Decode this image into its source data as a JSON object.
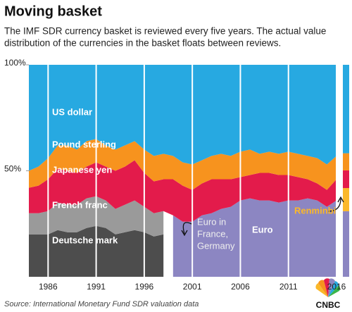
{
  "chart_data": {
    "type": "stacked-area",
    "title": "Moving basket",
    "subtitle": [
      "The IMF SDR currency basket is reviewed every five years. The actual value",
      "distribution of the currencies in the basket floats between reviews."
    ],
    "x": [
      1984,
      1985,
      1986,
      1987,
      1988,
      1989,
      1990,
      1991,
      1992,
      1993,
      1994,
      1995,
      1996,
      1997,
      1998,
      1999,
      2000,
      2001,
      2002,
      2003,
      2004,
      2005,
      2006,
      2007,
      2008,
      2009,
      2010,
      2011,
      2012,
      2013,
      2014,
      2015,
      2016
    ],
    "xlim": [
      1984,
      2016
    ],
    "xticks": [
      1986,
      1991,
      1996,
      2001,
      2006,
      2011,
      2016
    ],
    "ylim": [
      0,
      100
    ],
    "yticks": [
      {
        "value": 100,
        "label": "100%"
      },
      {
        "value": 50,
        "label": "50%"
      }
    ],
    "series": [
      {
        "name": "Deutsche mark",
        "color": "#4d4d4d",
        "values": [
          20,
          20,
          20,
          22,
          21,
          21,
          23,
          24,
          23,
          20,
          21,
          22,
          21,
          19,
          20,
          null,
          null,
          null,
          null,
          null,
          null,
          null,
          null,
          null,
          null,
          null,
          null,
          null,
          null,
          null,
          null,
          null,
          null
        ]
      },
      {
        "name": "French franc",
        "color": "#9a9a9a",
        "values": [
          10,
          10,
          11,
          13,
          13,
          13,
          14,
          14,
          13,
          12,
          13,
          14,
          12,
          11,
          11,
          null,
          null,
          null,
          null,
          null,
          null,
          null,
          null,
          null,
          null,
          null,
          null,
          null,
          null,
          null,
          null,
          null,
          null
        ]
      },
      {
        "name": "Euro",
        "color": "#8c86c2",
        "basket": 30.93,
        "values": [
          null,
          null,
          null,
          null,
          null,
          null,
          null,
          null,
          null,
          null,
          null,
          null,
          null,
          null,
          null,
          29,
          26,
          26,
          29,
          30,
          32,
          33,
          36,
          37,
          36,
          36,
          35,
          36,
          36,
          37,
          36,
          33,
          36
        ]
      },
      {
        "name": "Renminbi",
        "color": "#fbb829",
        "basket": 10.92,
        "values": [
          null,
          null,
          null,
          null,
          null,
          null,
          null,
          null,
          null,
          null,
          null,
          null,
          null,
          null,
          null,
          null,
          null,
          null,
          null,
          null,
          null,
          null,
          null,
          null,
          null,
          null,
          null,
          null,
          null,
          null,
          null,
          null,
          null
        ]
      },
      {
        "name": "Japanese yen",
        "color": "#e31b4b",
        "basket": 8.33,
        "values": [
          12,
          13,
          15,
          16,
          16,
          15,
          15,
          16,
          16,
          18,
          18,
          19,
          16,
          15,
          15,
          17,
          17,
          15,
          15,
          16,
          14,
          13,
          11,
          11,
          13,
          13,
          13,
          12,
          11,
          9,
          8,
          8,
          10
        ]
      },
      {
        "name": "Pound sterling",
        "color": "#f7931e",
        "basket": 8.09,
        "values": [
          8,
          9,
          10,
          11,
          12,
          11,
          12,
          11,
          10,
          10,
          10,
          9,
          11,
          12,
          12,
          11,
          11,
          12,
          11,
          11,
          12,
          11,
          12,
          12,
          9,
          10,
          10,
          11,
          11,
          11,
          12,
          12,
          11
        ]
      },
      {
        "name": "US dollar",
        "color": "#27a9e1",
        "basket": 41.73,
        "values": [
          50,
          48,
          44,
          38,
          38,
          40,
          36,
          35,
          38,
          40,
          38,
          36,
          40,
          43,
          42,
          43,
          46,
          47,
          45,
          43,
          42,
          43,
          41,
          40,
          42,
          41,
          42,
          41,
          42,
          43,
          44,
          47,
          43
        ]
      }
    ],
    "annotation": [
      "Euro in",
      "France,",
      "Germany"
    ],
    "source": "Source: International Monetary Fund SDR valuation data",
    "logo": "CNBC"
  }
}
